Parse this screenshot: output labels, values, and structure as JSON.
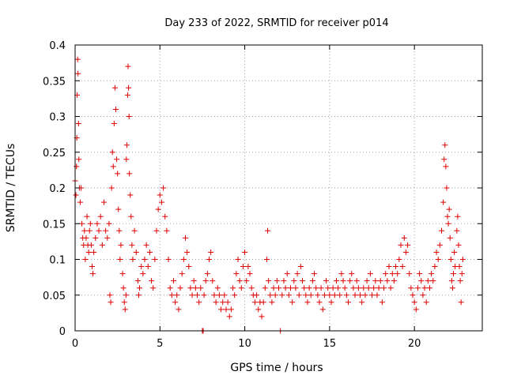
{
  "chart_data": {
    "type": "scatter",
    "title": "Day 233 of 2022, SRMTID for receiver p014",
    "xlabel": "GPS time / hours",
    "ylabel": "SRMTID / TECUs",
    "xlim": [
      0,
      24
    ],
    "ylim": [
      0,
      0.4
    ],
    "xticks": [
      0,
      5,
      10,
      15,
      20
    ],
    "xtick_labels": [
      "0",
      "5",
      "10",
      "15",
      "20"
    ],
    "yticks": [
      0,
      0.05,
      0.1,
      0.15,
      0.2,
      0.25,
      0.3,
      0.35,
      0.4
    ],
    "ytick_labels": [
      "0",
      "0.05",
      "0.1",
      "0.15",
      "0.2",
      "0.25",
      "0.3",
      "0.35",
      "0.4"
    ],
    "grid": true,
    "marker": "plus",
    "color": "#e00000",
    "series": [
      {
        "name": "SRMTID",
        "points": [
          [
            0.0,
            0.21
          ],
          [
            0.05,
            0.19
          ],
          [
            0.08,
            0.23
          ],
          [
            0.1,
            0.27
          ],
          [
            0.12,
            0.33
          ],
          [
            0.15,
            0.38
          ],
          [
            0.17,
            0.36
          ],
          [
            0.2,
            0.29
          ],
          [
            0.22,
            0.24
          ],
          [
            0.25,
            0.2
          ],
          [
            0.3,
            0.18
          ],
          [
            0.35,
            0.2
          ],
          [
            0.4,
            0.15
          ],
          [
            0.45,
            0.13
          ],
          [
            0.5,
            0.12
          ],
          [
            0.55,
            0.14
          ],
          [
            0.6,
            0.1
          ],
          [
            0.65,
            0.13
          ],
          [
            0.7,
            0.16
          ],
          [
            0.75,
            0.12
          ],
          [
            0.8,
            0.11
          ],
          [
            0.85,
            0.14
          ],
          [
            0.9,
            0.15
          ],
          [
            0.95,
            0.12
          ],
          [
            1.0,
            0.09
          ],
          [
            1.05,
            0.08
          ],
          [
            1.1,
            0.11
          ],
          [
            1.2,
            0.13
          ],
          [
            1.3,
            0.15
          ],
          [
            1.4,
            0.14
          ],
          [
            1.5,
            0.16
          ],
          [
            1.6,
            0.12
          ],
          [
            1.7,
            0.18
          ],
          [
            1.8,
            0.14
          ],
          [
            1.9,
            0.13
          ],
          [
            2.0,
            0.15
          ],
          [
            2.05,
            0.05
          ],
          [
            2.1,
            0.04
          ],
          [
            2.15,
            0.2
          ],
          [
            2.2,
            0.25
          ],
          [
            2.25,
            0.23
          ],
          [
            2.3,
            0.29
          ],
          [
            2.35,
            0.34
          ],
          [
            2.4,
            0.31
          ],
          [
            2.45,
            0.24
          ],
          [
            2.5,
            0.22
          ],
          [
            2.55,
            0.17
          ],
          [
            2.6,
            0.14
          ],
          [
            2.65,
            0.1
          ],
          [
            2.7,
            0.12
          ],
          [
            2.8,
            0.08
          ],
          [
            2.85,
            0.06
          ],
          [
            2.9,
            0.04
          ],
          [
            2.95,
            0.03
          ],
          [
            3.0,
            0.05
          ],
          [
            3.02,
            0.24
          ],
          [
            3.05,
            0.26
          ],
          [
            3.1,
            0.33
          ],
          [
            3.12,
            0.37
          ],
          [
            3.15,
            0.34
          ],
          [
            3.18,
            0.3
          ],
          [
            3.2,
            0.22
          ],
          [
            3.25,
            0.19
          ],
          [
            3.3,
            0.16
          ],
          [
            3.35,
            0.12
          ],
          [
            3.4,
            0.1
          ],
          [
            3.5,
            0.14
          ],
          [
            3.6,
            0.11
          ],
          [
            3.7,
            0.07
          ],
          [
            3.75,
            0.05
          ],
          [
            3.8,
            0.06
          ],
          [
            3.9,
            0.09
          ],
          [
            4.0,
            0.08
          ],
          [
            4.1,
            0.1
          ],
          [
            4.2,
            0.12
          ],
          [
            4.3,
            0.09
          ],
          [
            4.4,
            0.11
          ],
          [
            4.5,
            0.07
          ],
          [
            4.6,
            0.06
          ],
          [
            4.7,
            0.1
          ],
          [
            4.8,
            0.14
          ],
          [
            4.9,
            0.17
          ],
          [
            5.0,
            0.19
          ],
          [
            5.1,
            0.18
          ],
          [
            5.2,
            0.2
          ],
          [
            5.3,
            0.16
          ],
          [
            5.4,
            0.14
          ],
          [
            5.5,
            0.1
          ],
          [
            5.6,
            0.06
          ],
          [
            5.7,
            0.05
          ],
          [
            5.8,
            0.07
          ],
          [
            5.9,
            0.04
          ],
          [
            6.0,
            0.05
          ],
          [
            6.1,
            0.03
          ],
          [
            6.2,
            0.06
          ],
          [
            6.3,
            0.08
          ],
          [
            6.4,
            0.1
          ],
          [
            6.5,
            0.13
          ],
          [
            6.6,
            0.11
          ],
          [
            6.7,
            0.09
          ],
          [
            6.8,
            0.06
          ],
          [
            6.9,
            0.05
          ],
          [
            7.0,
            0.07
          ],
          [
            7.1,
            0.06
          ],
          [
            7.2,
            0.05
          ],
          [
            7.3,
            0.04
          ],
          [
            7.4,
            0.06
          ],
          [
            7.5,
            0.0
          ],
          [
            7.55,
            0.0
          ],
          [
            7.6,
            0.05
          ],
          [
            7.7,
            0.07
          ],
          [
            7.8,
            0.08
          ],
          [
            7.9,
            0.1
          ],
          [
            8.0,
            0.11
          ],
          [
            8.1,
            0.07
          ],
          [
            8.2,
            0.05
          ],
          [
            8.3,
            0.04
          ],
          [
            8.4,
            0.06
          ],
          [
            8.5,
            0.05
          ],
          [
            8.6,
            0.03
          ],
          [
            8.7,
            0.04
          ],
          [
            8.8,
            0.05
          ],
          [
            8.9,
            0.03
          ],
          [
            9.0,
            0.04
          ],
          [
            9.1,
            0.02
          ],
          [
            9.2,
            0.03
          ],
          [
            9.3,
            0.06
          ],
          [
            9.4,
            0.05
          ],
          [
            9.5,
            0.08
          ],
          [
            9.6,
            0.1
          ],
          [
            9.7,
            0.07
          ],
          [
            9.8,
            0.06
          ],
          [
            9.9,
            0.09
          ],
          [
            10.0,
            0.11
          ],
          [
            10.1,
            0.07
          ],
          [
            10.2,
            0.09
          ],
          [
            10.3,
            0.08
          ],
          [
            10.4,
            0.06
          ],
          [
            10.5,
            0.05
          ],
          [
            10.6,
            0.04
          ],
          [
            10.7,
            0.05
          ],
          [
            10.8,
            0.03
          ],
          [
            10.9,
            0.04
          ],
          [
            11.0,
            0.02
          ],
          [
            11.1,
            0.04
          ],
          [
            11.2,
            0.06
          ],
          [
            11.3,
            0.1
          ],
          [
            11.35,
            0.14
          ],
          [
            11.4,
            0.07
          ],
          [
            11.5,
            0.05
          ],
          [
            11.6,
            0.04
          ],
          [
            11.7,
            0.06
          ],
          [
            11.8,
            0.05
          ],
          [
            11.9,
            0.07
          ],
          [
            12.0,
            0.06
          ],
          [
            12.1,
            0.0
          ],
          [
            12.2,
            0.05
          ],
          [
            12.3,
            0.07
          ],
          [
            12.4,
            0.06
          ],
          [
            12.5,
            0.08
          ],
          [
            12.6,
            0.05
          ],
          [
            12.7,
            0.06
          ],
          [
            12.8,
            0.04
          ],
          [
            12.9,
            0.07
          ],
          [
            13.0,
            0.06
          ],
          [
            13.1,
            0.08
          ],
          [
            13.2,
            0.05
          ],
          [
            13.3,
            0.09
          ],
          [
            13.4,
            0.07
          ],
          [
            13.5,
            0.06
          ],
          [
            13.6,
            0.05
          ],
          [
            13.7,
            0.04
          ],
          [
            13.8,
            0.06
          ],
          [
            13.9,
            0.05
          ],
          [
            14.0,
            0.07
          ],
          [
            14.1,
            0.08
          ],
          [
            14.2,
            0.06
          ],
          [
            14.3,
            0.05
          ],
          [
            14.4,
            0.04
          ],
          [
            14.5,
            0.06
          ],
          [
            14.6,
            0.03
          ],
          [
            14.7,
            0.05
          ],
          [
            14.8,
            0.07
          ],
          [
            14.9,
            0.06
          ],
          [
            15.0,
            0.05
          ],
          [
            15.1,
            0.04
          ],
          [
            15.2,
            0.06
          ],
          [
            15.3,
            0.05
          ],
          [
            15.4,
            0.07
          ],
          [
            15.5,
            0.06
          ],
          [
            15.6,
            0.05
          ],
          [
            15.7,
            0.08
          ],
          [
            15.8,
            0.07
          ],
          [
            15.9,
            0.06
          ],
          [
            16.0,
            0.05
          ],
          [
            16.1,
            0.04
          ],
          [
            16.2,
            0.07
          ],
          [
            16.3,
            0.08
          ],
          [
            16.4,
            0.06
          ],
          [
            16.5,
            0.05
          ],
          [
            16.6,
            0.07
          ],
          [
            16.7,
            0.06
          ],
          [
            16.8,
            0.05
          ],
          [
            16.9,
            0.04
          ],
          [
            17.0,
            0.06
          ],
          [
            17.1,
            0.05
          ],
          [
            17.2,
            0.07
          ],
          [
            17.3,
            0.06
          ],
          [
            17.4,
            0.08
          ],
          [
            17.5,
            0.05
          ],
          [
            17.6,
            0.06
          ],
          [
            17.7,
            0.07
          ],
          [
            17.8,
            0.05
          ],
          [
            17.9,
            0.06
          ],
          [
            18.0,
            0.07
          ],
          [
            18.1,
            0.04
          ],
          [
            18.2,
            0.06
          ],
          [
            18.3,
            0.08
          ],
          [
            18.4,
            0.07
          ],
          [
            18.5,
            0.09
          ],
          [
            18.6,
            0.06
          ],
          [
            18.7,
            0.08
          ],
          [
            18.8,
            0.07
          ],
          [
            18.9,
            0.09
          ],
          [
            19.0,
            0.08
          ],
          [
            19.1,
            0.1
          ],
          [
            19.2,
            0.12
          ],
          [
            19.3,
            0.09
          ],
          [
            19.4,
            0.13
          ],
          [
            19.5,
            0.11
          ],
          [
            19.6,
            0.12
          ],
          [
            19.7,
            0.08
          ],
          [
            19.8,
            0.06
          ],
          [
            19.9,
            0.05
          ],
          [
            20.0,
            0.04
          ],
          [
            20.1,
            0.03
          ],
          [
            20.2,
            0.06
          ],
          [
            20.3,
            0.08
          ],
          [
            20.4,
            0.07
          ],
          [
            20.5,
            0.05
          ],
          [
            20.6,
            0.06
          ],
          [
            20.7,
            0.04
          ],
          [
            20.8,
            0.07
          ],
          [
            20.9,
            0.06
          ],
          [
            21.0,
            0.08
          ],
          [
            21.1,
            0.07
          ],
          [
            21.2,
            0.09
          ],
          [
            21.3,
            0.11
          ],
          [
            21.4,
            0.1
          ],
          [
            21.5,
            0.12
          ],
          [
            21.6,
            0.14
          ],
          [
            21.7,
            0.18
          ],
          [
            21.75,
            0.24
          ],
          [
            21.8,
            0.26
          ],
          [
            21.85,
            0.23
          ],
          [
            21.9,
            0.2
          ],
          [
            21.95,
            0.16
          ],
          [
            22.0,
            0.15
          ],
          [
            22.05,
            0.17
          ],
          [
            22.1,
            0.13
          ],
          [
            22.15,
            0.1
          ],
          [
            22.2,
            0.07
          ],
          [
            22.25,
            0.06
          ],
          [
            22.3,
            0.08
          ],
          [
            22.35,
            0.11
          ],
          [
            22.4,
            0.09
          ],
          [
            22.5,
            0.14
          ],
          [
            22.55,
            0.16
          ],
          [
            22.6,
            0.12
          ],
          [
            22.65,
            0.09
          ],
          [
            22.7,
            0.07
          ],
          [
            22.75,
            0.04
          ],
          [
            22.8,
            0.08
          ],
          [
            22.85,
            0.1
          ]
        ]
      }
    ]
  }
}
